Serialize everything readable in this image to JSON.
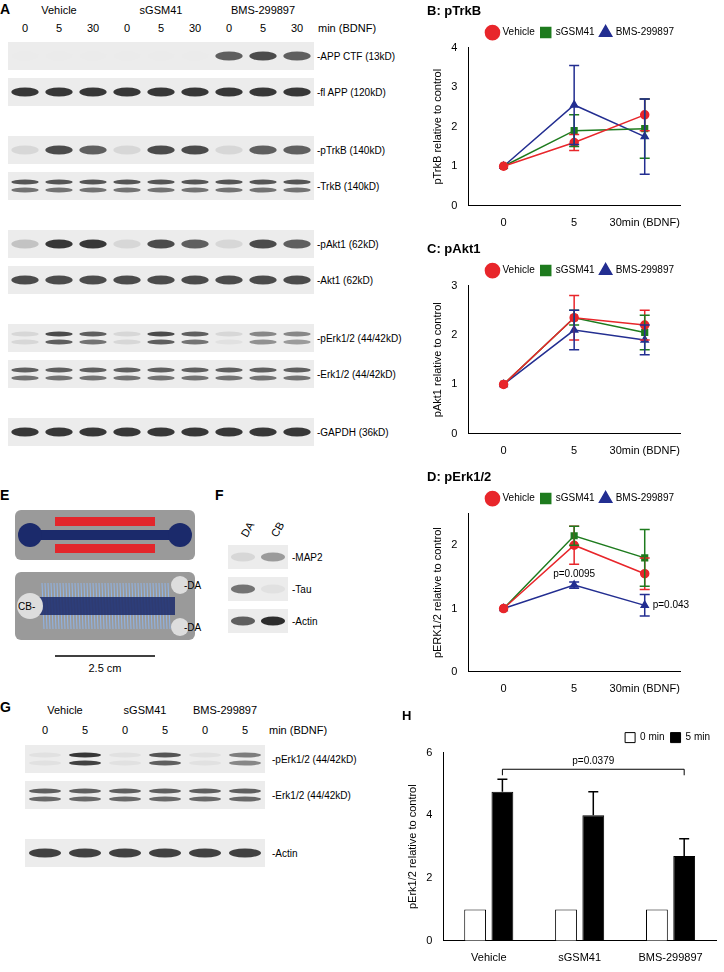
{
  "figure": {
    "A": {
      "label": "A",
      "groups": [
        "Vehicle",
        "sGSM41",
        "BMS-299897"
      ],
      "lanes": [
        "0",
        "5",
        "30",
        "0",
        "5",
        "30",
        "0",
        "5",
        "30"
      ],
      "lane_unit": "min (BDNF)",
      "blocks": [
        [
          {
            "label": "-APP CTF (13kD)",
            "intensities": [
              0,
              0,
              0,
              0,
              0,
              0,
              0.7,
              0.8,
              0.7
            ]
          },
          {
            "label": "-fl APP (120kD)",
            "intensities": [
              0.9,
              0.9,
              0.9,
              0.9,
              0.9,
              0.9,
              0.9,
              0.9,
              0.9
            ]
          }
        ],
        [
          {
            "label": "-pTrkB (140kD)",
            "intensities": [
              0.1,
              0.8,
              0.7,
              0.1,
              0.8,
              0.8,
              0.1,
              0.7,
              0.7
            ]
          },
          {
            "label": "-TrkB (140kD)",
            "intensities": [
              [
                0.75,
                0.6
              ],
              [
                0.75,
                0.6
              ],
              [
                0.75,
                0.6
              ],
              [
                0.75,
                0.6
              ],
              [
                0.75,
                0.6
              ],
              [
                0.75,
                0.6
              ],
              [
                0.75,
                0.6
              ],
              [
                0.75,
                0.6
              ],
              [
                0.75,
                0.6
              ]
            ]
          }
        ],
        [
          {
            "label": "-pAkt1 (62kD)",
            "intensities": [
              0.2,
              0.9,
              0.9,
              0.1,
              0.8,
              0.7,
              0.1,
              0.8,
              0.7
            ]
          },
          {
            "label": "-Akt1 (62kD)",
            "intensities": [
              0.8,
              0.8,
              0.8,
              0.8,
              0.8,
              0.8,
              0.8,
              0.8,
              0.8
            ]
          }
        ],
        [
          {
            "label": "-pErk1/2 (44/42kD)",
            "intensities": [
              [
                0.1,
                0.1
              ],
              [
                0.8,
                0.7
              ],
              [
                0.7,
                0.6
              ],
              [
                0.1,
                0.1
              ],
              [
                0.8,
                0.7
              ],
              [
                0.7,
                0.6
              ],
              [
                0.1,
                0.05
              ],
              [
                0.5,
                0.45
              ],
              [
                0.5,
                0.4
              ]
            ]
          },
          {
            "label": "-Erk1/2 (44/42kD)",
            "intensities": [
              [
                0.7,
                0.6
              ],
              [
                0.7,
                0.6
              ],
              [
                0.7,
                0.6
              ],
              [
                0.7,
                0.6
              ],
              [
                0.7,
                0.6
              ],
              [
                0.7,
                0.6
              ],
              [
                0.7,
                0.6
              ],
              [
                0.7,
                0.6
              ],
              [
                0.7,
                0.6
              ]
            ]
          }
        ],
        [
          {
            "label": "-GAPDH (36kD)",
            "intensities": [
              0.9,
              0.9,
              0.9,
              0.9,
              0.9,
              0.9,
              0.9,
              0.9,
              0.9
            ]
          }
        ]
      ]
    },
    "E": {
      "label": "E",
      "labels": [
        "CB-",
        "-DA",
        "-DA"
      ],
      "scale_bar": "2.5 cm"
    },
    "F": {
      "label": "F",
      "lanes": [
        "DA",
        "CB"
      ],
      "blocks": [
        [
          {
            "label": "-MAP2",
            "intensities": [
              0.1,
              0.4
            ]
          },
          {
            "label": "-Tau",
            "intensities": [
              0.6,
              0.05
            ]
          },
          {
            "label": "-Actin",
            "intensities": [
              0.7,
              0.95
            ]
          }
        ]
      ]
    },
    "G": {
      "label": "G",
      "groups": [
        "Vehicle",
        "sGSM41",
        "BMS-299897"
      ],
      "lanes": [
        "0",
        "5",
        "0",
        "5",
        "0",
        "5"
      ],
      "lane_unit": "min (BDNF)",
      "blocks": [
        [
          {
            "label": "-pErk1/2 (44/42kD)",
            "intensities": [
              [
                0.05,
                0.05
              ],
              [
                0.9,
                0.85
              ],
              [
                0.05,
                0.05
              ],
              [
                0.75,
                0.7
              ],
              [
                0.05,
                0.05
              ],
              [
                0.55,
                0.5
              ]
            ]
          },
          {
            "label": "-Erk1/2 (44/42kD)",
            "intensities": [
              [
                0.7,
                0.65
              ],
              [
                0.7,
                0.65
              ],
              [
                0.7,
                0.65
              ],
              [
                0.7,
                0.65
              ],
              [
                0.7,
                0.65
              ],
              [
                0.7,
                0.65
              ]
            ]
          }
        ],
        [
          {
            "label": "-Actin",
            "intensities": [
              0.85,
              0.85,
              0.85,
              0.85,
              0.85,
              0.85
            ]
          }
        ]
      ]
    }
  },
  "chart_data": [
    {
      "type": "line",
      "title": "B: pTrkB",
      "categories": [
        "0",
        "5",
        "30min (BDNF)"
      ],
      "y_label": "pTrkB relative to control",
      "ylim": [
        0,
        4
      ],
      "yticks": [
        0,
        1,
        2,
        3,
        4
      ],
      "grid": false,
      "legend": "upper right",
      "series": [
        {
          "name": "Vehicle",
          "color": "#e8262b",
          "marker": "circle",
          "values": [
            1,
            1.6,
            2.3
          ],
          "errors": [
            0,
            0.2,
            0.4
          ]
        },
        {
          "name": "sGSM41",
          "color": "#1e7b1e",
          "marker": "square",
          "values": [
            1,
            1.9,
            1.95
          ],
          "errors": [
            0,
            0.4,
            0.75
          ]
        },
        {
          "name": "BMS-299897",
          "color": "#232e91",
          "marker": "triangle",
          "values": [
            1,
            2.55,
            1.75
          ],
          "errors": [
            0,
            1.0,
            0.95
          ]
        }
      ]
    },
    {
      "type": "line",
      "title": "C: pAkt1",
      "categories": [
        "0",
        "5",
        "30min (BDNF)"
      ],
      "y_label": "pAkt1 relative to control",
      "ylim": [
        0,
        3
      ],
      "yticks": [
        0,
        1,
        2,
        3
      ],
      "grid": false,
      "legend": "upper right",
      "series": [
        {
          "name": "Vehicle",
          "color": "#e8262b",
          "marker": "circle",
          "values": [
            1,
            2.35,
            2.2
          ],
          "errors": [
            0,
            0.45,
            0.3
          ]
        },
        {
          "name": "sGSM41",
          "color": "#1e7b1e",
          "marker": "square",
          "values": [
            1,
            2.35,
            2.05
          ],
          "errors": [
            0,
            0.15,
            0.35
          ]
        },
        {
          "name": "BMS-299897",
          "color": "#232e91",
          "marker": "triangle",
          "values": [
            1,
            2.1,
            1.9
          ],
          "errors": [
            0,
            0.4,
            0.3
          ]
        }
      ]
    },
    {
      "type": "line",
      "title": "D: pErk1/2",
      "categories": [
        "0",
        "5",
        "30min (BDNF)"
      ],
      "y_label": "pERK1/2 relative to control",
      "ylim": [
        0,
        2.5
      ],
      "yticks": [
        0,
        1,
        2
      ],
      "grid": false,
      "legend": "upper right",
      "series": [
        {
          "name": "Vehicle",
          "color": "#e8262b",
          "marker": "circle",
          "values": [
            1,
            2.0,
            1.55
          ],
          "errors": [
            0,
            0.3,
            0.25
          ]
        },
        {
          "name": "sGSM41",
          "color": "#1e7b1e",
          "marker": "square",
          "values": [
            1,
            2.15,
            1.8
          ],
          "errors": [
            0,
            0.15,
            0.45
          ]
        },
        {
          "name": "BMS-299897",
          "color": "#232e91",
          "marker": "triangle",
          "values": [
            1,
            1.37,
            1.05
          ],
          "errors": [
            0,
            0.05,
            0.17
          ]
        }
      ],
      "annotations": [
        {
          "text": "p=0.0095",
          "series": "BMS-299897",
          "category": "5"
        },
        {
          "text": "p=0.043",
          "series": "BMS-299897",
          "category": "30min (BDNF)"
        }
      ]
    },
    {
      "type": "bar",
      "title": "H",
      "categories": [
        "Vehicle",
        "sGSM41",
        "BMS-299897"
      ],
      "y_label": "pErk1/2 relative to control",
      "ylim": [
        0,
        6
      ],
      "yticks": [
        0,
        2,
        4,
        6
      ],
      "grid": false,
      "legend": "upper right",
      "series": [
        {
          "name": "0 min",
          "color": "#ffffff",
          "values": [
            1,
            1,
            1
          ],
          "errors": [
            0,
            0,
            0
          ]
        },
        {
          "name": "5 min",
          "color": "#000000",
          "values": [
            4.75,
            4.0,
            2.7
          ],
          "errors": [
            0.4,
            0.75,
            0.55
          ]
        }
      ],
      "annotations": [
        {
          "text": "p=0.0379",
          "series": "5 min",
          "from": "Vehicle",
          "to": "BMS-299897"
        }
      ]
    }
  ]
}
